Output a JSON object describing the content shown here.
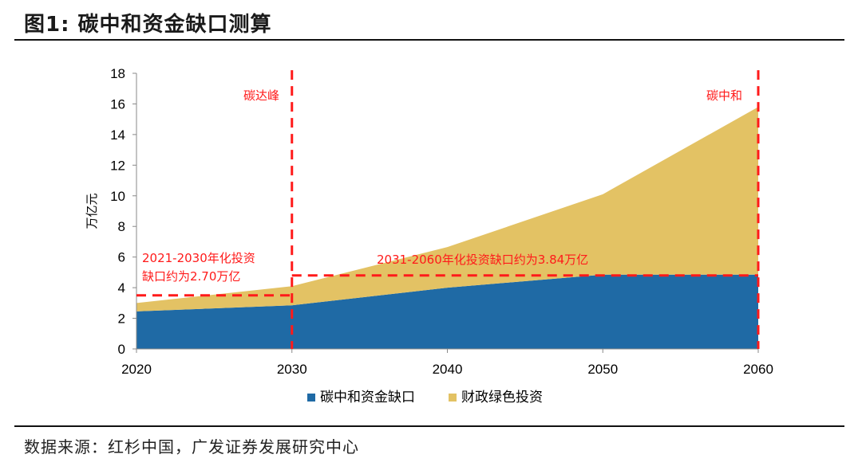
{
  "title": "图1:  碳中和资金缺口测算",
  "source": "数据来源：红杉中国，广发证券发展研究中心",
  "chart_data": {
    "type": "area",
    "stacked": true,
    "x": [
      2020,
      2030,
      2040,
      2050,
      2060
    ],
    "xticks": [
      "2020",
      "2030",
      "2040",
      "2050",
      "2060"
    ],
    "yticks": [
      "0",
      "2",
      "4",
      "6",
      "8",
      "10",
      "12",
      "14",
      "16",
      "18"
    ],
    "ylim": [
      0,
      18
    ],
    "ylabel": "万亿元",
    "series": [
      {
        "name": "碳中和资金缺口",
        "color": "#1f6aa5",
        "values": [
          2.45,
          2.85,
          4.0,
          4.85,
          4.85
        ]
      },
      {
        "name": "财政绿色投资",
        "color": "#e3c264",
        "values": [
          0.55,
          1.25,
          2.65,
          5.25,
          10.95
        ]
      }
    ],
    "annotations": {
      "peak_label": "碳达峰",
      "neutral_label": "碳中和",
      "gap1_line1": "2021-2030年化投资",
      "gap1_line2": "缺口约为2.70万亿",
      "gap2": "2031-2060年化投资缺口约为3.84万亿",
      "gap1_value": 3.5,
      "gap2_value": 4.8
    }
  }
}
